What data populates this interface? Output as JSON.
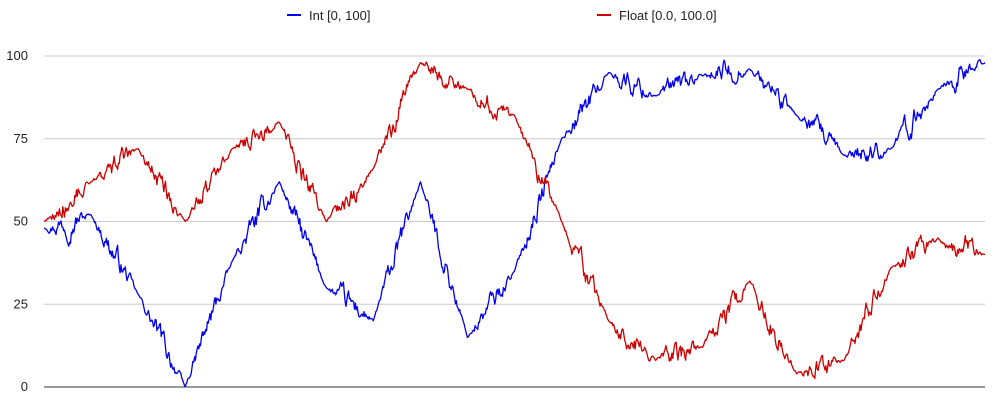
{
  "chart_data": {
    "type": "line",
    "title": "",
    "xlabel": "",
    "ylabel": "",
    "ylim": [
      0,
      100
    ],
    "y_ticks": [
      "0",
      "25",
      "50",
      "75",
      "100"
    ],
    "grid": true,
    "legend_position": "top",
    "x": [
      0,
      5,
      10,
      15,
      20,
      25,
      30,
      35,
      40,
      45,
      50,
      55,
      60,
      65,
      70,
      75,
      80,
      85,
      90,
      95,
      100
    ],
    "series": [
      {
        "name": "Int [0, 100]",
        "color": "#0000ee",
        "values": [
          48,
          52,
          28,
          0,
          38,
          62,
          30,
          20,
          62,
          15,
          35,
          75,
          95,
          88,
          94,
          96,
          82,
          70,
          72,
          90,
          98
        ]
      },
      {
        "name": "Float [0.0, 100.0]",
        "color": "#cc0000",
        "values": [
          50,
          62,
          72,
          50,
          72,
          80,
          50,
          66,
          98,
          90,
          82,
          50,
          20,
          8,
          12,
          32,
          4,
          8,
          36,
          45,
          40
        ]
      }
    ]
  }
}
